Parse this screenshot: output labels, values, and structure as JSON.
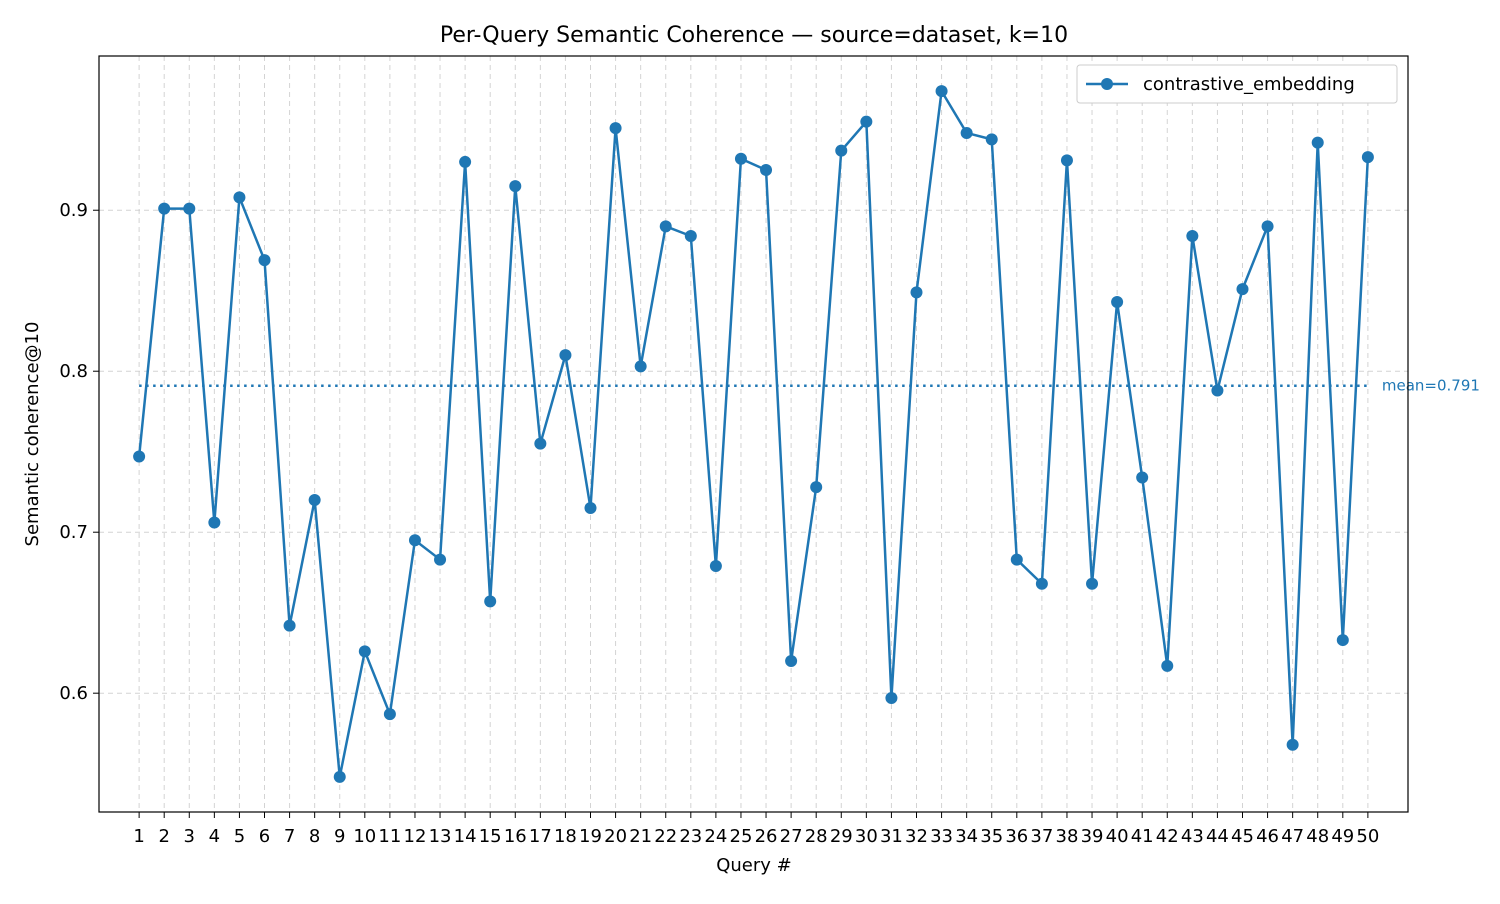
{
  "chart_data": {
    "type": "line",
    "title": "Per-Query Semantic Coherence — source=dataset, k=10",
    "xlabel": "Query #",
    "ylabel": "Semantic coherence@10",
    "x": [
      1,
      2,
      3,
      4,
      5,
      6,
      7,
      8,
      9,
      10,
      11,
      12,
      13,
      14,
      15,
      16,
      17,
      18,
      19,
      20,
      21,
      22,
      23,
      24,
      25,
      26,
      27,
      28,
      29,
      30,
      31,
      32,
      33,
      34,
      35,
      36,
      37,
      38,
      39,
      40,
      41,
      42,
      43,
      44,
      45,
      46,
      47,
      48,
      49,
      50
    ],
    "series": [
      {
        "name": "contrastive_embedding",
        "color": "#1f77b4",
        "values": [
          0.747,
          0.901,
          0.901,
          0.706,
          0.908,
          0.869,
          0.642,
          0.72,
          0.548,
          0.626,
          0.587,
          0.695,
          0.683,
          0.93,
          0.657,
          0.915,
          0.755,
          0.81,
          0.715,
          0.951,
          0.803,
          0.89,
          0.884,
          0.679,
          0.932,
          0.925,
          0.62,
          0.728,
          0.937,
          0.955,
          0.597,
          0.849,
          0.974,
          0.948,
          0.944,
          0.683,
          0.668,
          0.931,
          0.668,
          0.843,
          0.734,
          0.617,
          0.884,
          0.788,
          0.851,
          0.89,
          0.568,
          0.942,
          0.633,
          0.933
        ]
      }
    ],
    "mean_line": {
      "value": 0.791,
      "label": "mean=0.791"
    },
    "xlim": [
      -0.6,
      51.6
    ],
    "ylim": [
      0.5262,
      0.9958
    ],
    "yticks": [
      0.6,
      0.7,
      0.8,
      0.9
    ],
    "grid": true,
    "legend_position": "top-right"
  }
}
